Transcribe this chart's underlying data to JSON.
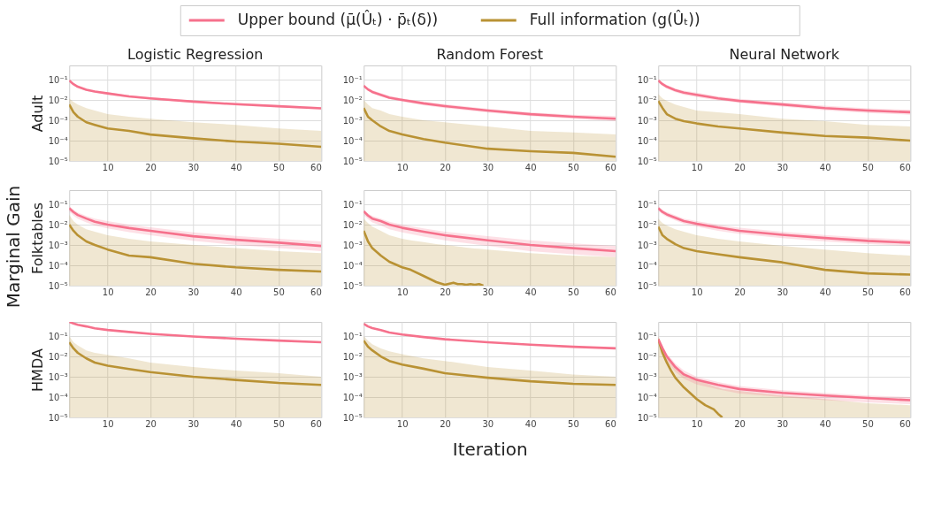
{
  "chart_data": [
    {
      "type": "line",
      "title": "Logistic Regression",
      "ylabel": "Adult",
      "legend": "top",
      "log": "y",
      "grid": true,
      "xlim": [
        1,
        60
      ],
      "ylim": [
        1e-05,
        0.5
      ],
      "xticks": [
        10,
        20,
        30,
        40,
        50,
        60
      ],
      "yticks": [
        {
          "value": 1e-05,
          "label": "10⁻⁵"
        },
        {
          "value": 0.0001,
          "label": "10⁻⁴"
        },
        {
          "value": 0.001,
          "label": "10⁻³"
        },
        {
          "value": 0.01,
          "label": "10⁻²"
        },
        {
          "value": 0.1,
          "label": "10⁻¹"
        }
      ],
      "x": [
        1,
        2,
        3,
        5,
        7,
        10,
        15,
        20,
        30,
        40,
        50,
        60
      ],
      "series": [
        {
          "name": "Full information (g(Ûₜ))",
          "color": "#b99234",
          "values": [
            0.006,
            0.0025,
            0.0015,
            0.0008,
            0.0006,
            0.0004,
            0.0003,
            0.0002,
            0.00013,
            9e-05,
            7e-05,
            5e-05
          ],
          "lower": [
            1e-05,
            1e-05,
            1e-05,
            1e-05,
            1e-05,
            1e-05,
            1e-05,
            1e-05,
            1e-05,
            1e-05,
            1e-05,
            1e-05
          ],
          "upper": [
            0.012,
            0.008,
            0.006,
            0.004,
            0.003,
            0.002,
            0.0015,
            0.0012,
            0.0008,
            0.0006,
            0.0004,
            0.0003
          ]
        },
        {
          "name": "Upper bound (μ̄(Ûₜ) · p̄ₜ(δ))",
          "color": "#f6718c",
          "values": [
            0.09,
            0.06,
            0.045,
            0.032,
            0.026,
            0.021,
            0.015,
            0.012,
            0.0083,
            0.0062,
            0.0049,
            0.0039
          ],
          "lower": [
            0.08,
            0.053,
            0.04,
            0.028,
            0.023,
            0.018,
            0.013,
            0.0105,
            0.0073,
            0.0054,
            0.0043,
            0.0034
          ],
          "upper": [
            0.1,
            0.068,
            0.051,
            0.036,
            0.029,
            0.024,
            0.017,
            0.0135,
            0.0094,
            0.007,
            0.0056,
            0.0045
          ]
        }
      ]
    },
    {
      "type": "line",
      "title": "Random Forest",
      "log": "y",
      "grid": true,
      "xlim": [
        1,
        60
      ],
      "ylim": [
        1e-05,
        0.5
      ],
      "xticks": [
        10,
        20,
        30,
        40,
        50,
        60
      ],
      "yticks": [
        {
          "value": 1e-05,
          "label": "10⁻⁵"
        },
        {
          "value": 0.0001,
          "label": "10⁻⁴"
        },
        {
          "value": 0.001,
          "label": "10⁻³"
        },
        {
          "value": 0.01,
          "label": "10⁻²"
        },
        {
          "value": 0.1,
          "label": "10⁻¹"
        }
      ],
      "x": [
        1,
        2,
        3,
        5,
        7,
        10,
        15,
        20,
        30,
        40,
        50,
        60
      ],
      "series": [
        {
          "color": "#b99234",
          "values": [
            0.004,
            0.0015,
            0.001,
            0.0005,
            0.0003,
            0.0002,
            0.00012,
            8e-05,
            4e-05,
            3e-05,
            2.5e-05,
            1.6e-05
          ],
          "lower": [
            1e-05,
            1e-05,
            1e-05,
            1e-05,
            1e-05,
            1e-05,
            1e-05,
            1e-05,
            1e-05,
            1e-05,
            1e-05,
            1e-05
          ],
          "upper": [
            0.01,
            0.006,
            0.004,
            0.003,
            0.002,
            0.0015,
            0.001,
            0.0008,
            0.0005,
            0.0003,
            0.00025,
            0.0002
          ]
        },
        {
          "color": "#f6718c",
          "values": [
            0.05,
            0.033,
            0.025,
            0.018,
            0.013,
            0.01,
            0.0068,
            0.005,
            0.003,
            0.002,
            0.0015,
            0.0012
          ],
          "lower": [
            0.042,
            0.028,
            0.021,
            0.015,
            0.011,
            0.0083,
            0.0055,
            0.004,
            0.0024,
            0.0016,
            0.0012,
            0.0009
          ],
          "upper": [
            0.058,
            0.039,
            0.03,
            0.022,
            0.016,
            0.012,
            0.0083,
            0.0062,
            0.0037,
            0.0025,
            0.0019,
            0.0016
          ]
        }
      ]
    },
    {
      "type": "line",
      "title": "Neural Network",
      "log": "y",
      "grid": true,
      "xlim": [
        1,
        60
      ],
      "ylim": [
        1e-05,
        0.5
      ],
      "xticks": [
        10,
        20,
        30,
        40,
        50,
        60
      ],
      "yticks": [
        {
          "value": 1e-05,
          "label": "10⁻⁵"
        },
        {
          "value": 0.0001,
          "label": "10⁻⁴"
        },
        {
          "value": 0.001,
          "label": "10⁻³"
        },
        {
          "value": 0.01,
          "label": "10⁻²"
        },
        {
          "value": 0.1,
          "label": "10⁻¹"
        }
      ],
      "x": [
        1,
        2,
        3,
        5,
        7,
        10,
        15,
        20,
        30,
        40,
        50,
        60
      ],
      "series": [
        {
          "color": "#b99234",
          "values": [
            0.009,
            0.004,
            0.002,
            0.0012,
            0.0009,
            0.0007,
            0.0005,
            0.0004,
            0.00025,
            0.00017,
            0.00014,
            0.0001
          ],
          "lower": [
            1e-05,
            1e-05,
            1e-05,
            1e-05,
            1e-05,
            1e-05,
            1e-05,
            1e-05,
            1e-05,
            1e-05,
            1e-05,
            1e-05
          ],
          "upper": [
            0.02,
            0.012,
            0.009,
            0.006,
            0.0045,
            0.003,
            0.0025,
            0.002,
            0.0012,
            0.0009,
            0.0006,
            0.0005
          ]
        },
        {
          "color": "#f6718c",
          "values": [
            0.09,
            0.06,
            0.045,
            0.03,
            0.023,
            0.018,
            0.012,
            0.009,
            0.006,
            0.004,
            0.003,
            0.0025
          ],
          "lower": [
            0.075,
            0.05,
            0.037,
            0.024,
            0.018,
            0.014,
            0.0095,
            0.0072,
            0.0047,
            0.0031,
            0.0023,
            0.0019
          ],
          "upper": [
            0.105,
            0.072,
            0.055,
            0.037,
            0.029,
            0.023,
            0.015,
            0.0115,
            0.0077,
            0.0052,
            0.0039,
            0.0033
          ]
        }
      ]
    },
    {
      "type": "line",
      "ylabel": "Folktables",
      "annotations": [
        "Marginal Gain"
      ],
      "log": "y",
      "grid": true,
      "xlim": [
        1,
        60
      ],
      "ylim": [
        1e-05,
        0.5
      ],
      "xticks": [
        10,
        20,
        30,
        40,
        50,
        60
      ],
      "yticks": [
        {
          "value": 1e-05,
          "label": "10⁻⁵"
        },
        {
          "value": 0.0001,
          "label": "10⁻⁴"
        },
        {
          "value": 0.001,
          "label": "10⁻³"
        },
        {
          "value": 0.01,
          "label": "10⁻²"
        },
        {
          "value": 0.1,
          "label": "10⁻¹"
        }
      ],
      "x": [
        1,
        2,
        3,
        5,
        7,
        10,
        15,
        20,
        30,
        40,
        50,
        60
      ],
      "series": [
        {
          "color": "#b99234",
          "values": [
            0.01,
            0.005,
            0.003,
            0.0015,
            0.001,
            0.0006,
            0.0003,
            0.00025,
            0.00012,
            8e-05,
            6e-05,
            5e-05
          ],
          "lower": [
            1e-05,
            1e-05,
            1e-05,
            1e-05,
            1e-05,
            1e-05,
            1e-05,
            1e-05,
            1e-05,
            1e-05,
            1e-05,
            1e-05
          ],
          "upper": [
            0.03,
            0.015,
            0.01,
            0.006,
            0.0045,
            0.003,
            0.002,
            0.0015,
            0.001,
            0.0007,
            0.0005,
            0.0004
          ]
        },
        {
          "color": "#f6718c",
          "values": [
            0.065,
            0.042,
            0.03,
            0.02,
            0.014,
            0.01,
            0.0068,
            0.005,
            0.0027,
            0.0018,
            0.0013,
            0.0009
          ],
          "lower": [
            0.045,
            0.028,
            0.02,
            0.013,
            0.009,
            0.0065,
            0.0043,
            0.003,
            0.0016,
            0.001,
            0.0007,
            0.0005
          ],
          "upper": [
            0.08,
            0.055,
            0.04,
            0.027,
            0.02,
            0.015,
            0.01,
            0.0075,
            0.0042,
            0.0028,
            0.002,
            0.0015
          ]
        }
      ]
    },
    {
      "type": "line",
      "log": "y",
      "grid": true,
      "xlim": [
        1,
        60
      ],
      "ylim": [
        1e-05,
        0.5
      ],
      "xticks": [
        10,
        20,
        30,
        40,
        50,
        60
      ],
      "yticks": [
        {
          "value": 1e-05,
          "label": "10⁻⁵"
        },
        {
          "value": 0.0001,
          "label": "10⁻⁴"
        },
        {
          "value": 0.001,
          "label": "10⁻³"
        },
        {
          "value": 0.01,
          "label": "10⁻²"
        },
        {
          "value": 0.1,
          "label": "10⁻¹"
        }
      ],
      "x": [
        1,
        2,
        3,
        5,
        7,
        10,
        15,
        20,
        30,
        40,
        50,
        60
      ],
      "series": [
        {
          "color": "#b99234",
          "x": [
            1,
            2,
            3,
            5,
            7,
            10,
            12,
            15,
            18,
            20,
            22,
            23,
            24,
            25,
            26,
            27,
            28,
            29,
            30,
            40,
            50,
            60
          ],
          "values": [
            0.005,
            0.0015,
            0.0007,
            0.0003,
            0.00015,
            8e-05,
            6e-05,
            3e-05,
            1.5e-05,
            1.1e-05,
            1.4e-05,
            1.2e-05,
            1.2e-05,
            1.1e-05,
            1.2e-05,
            1.1e-05,
            1.2e-05,
            1e-05,
            null,
            null,
            null,
            null
          ],
          "lower": [
            1e-05,
            1e-05,
            1e-05,
            1e-05,
            1e-05,
            1e-05,
            1e-05,
            1e-05,
            1e-05,
            1e-05,
            1e-05,
            1e-05,
            1e-05,
            1e-05,
            1e-05,
            1e-05,
            1e-05,
            1e-05,
            1e-05,
            1e-05,
            1e-05,
            1e-05
          ],
          "upper": [
            0.02,
            0.012,
            0.008,
            0.005,
            0.003,
            0.002,
            0.0017,
            0.0014,
            0.0011,
            0.001,
            0.0009,
            0.00085,
            0.0008,
            0.00075,
            0.0007,
            0.00068,
            0.00065,
            0.00062,
            0.0006,
            0.0004,
            0.0003,
            0.00025
          ]
        },
        {
          "color": "#f6718c",
          "values": [
            0.045,
            0.028,
            0.02,
            0.015,
            0.01,
            0.007,
            0.0045,
            0.003,
            0.0017,
            0.001,
            0.0007,
            0.0005
          ],
          "lower": [
            0.03,
            0.019,
            0.013,
            0.009,
            0.006,
            0.0042,
            0.0026,
            0.0017,
            0.0009,
            0.0005,
            0.00035,
            0.00025
          ],
          "upper": [
            0.055,
            0.036,
            0.027,
            0.02,
            0.014,
            0.01,
            0.0065,
            0.0045,
            0.0027,
            0.0017,
            0.0012,
            0.0009
          ]
        }
      ]
    },
    {
      "type": "line",
      "log": "y",
      "grid": true,
      "xlim": [
        1,
        60
      ],
      "ylim": [
        1e-05,
        0.5
      ],
      "xticks": [
        10,
        20,
        30,
        40,
        50,
        60
      ],
      "yticks": [
        {
          "value": 1e-05,
          "label": "10⁻⁵"
        },
        {
          "value": 0.0001,
          "label": "10⁻⁴"
        },
        {
          "value": 0.001,
          "label": "10⁻³"
        },
        {
          "value": 0.01,
          "label": "10⁻²"
        },
        {
          "value": 0.1,
          "label": "10⁻¹"
        }
      ],
      "x": [
        1,
        2,
        3,
        5,
        7,
        10,
        15,
        20,
        30,
        40,
        50,
        60
      ],
      "series": [
        {
          "color": "#b99234",
          "values": [
            0.008,
            0.003,
            0.002,
            0.0011,
            0.0007,
            0.0005,
            0.00035,
            0.00025,
            0.00014,
            6e-05,
            4e-05,
            3.5e-05
          ],
          "lower": [
            1e-05,
            1e-05,
            1e-05,
            1e-05,
            1e-05,
            1e-05,
            1e-05,
            1e-05,
            1e-05,
            1e-05,
            1e-05,
            1e-05
          ],
          "upper": [
            0.02,
            0.012,
            0.009,
            0.006,
            0.0045,
            0.003,
            0.002,
            0.0015,
            0.0009,
            0.0006,
            0.0004,
            0.0003
          ]
        },
        {
          "color": "#f6718c",
          "values": [
            0.065,
            0.042,
            0.032,
            0.022,
            0.015,
            0.011,
            0.0072,
            0.005,
            0.0032,
            0.0022,
            0.0016,
            0.0013
          ],
          "lower": [
            0.05,
            0.032,
            0.024,
            0.016,
            0.011,
            0.008,
            0.005,
            0.0035,
            0.0022,
            0.0015,
            0.0011,
            0.0009
          ],
          "upper": [
            0.08,
            0.054,
            0.042,
            0.029,
            0.02,
            0.015,
            0.01,
            0.007,
            0.0045,
            0.0031,
            0.0023,
            0.0018
          ]
        }
      ]
    },
    {
      "type": "line",
      "ylabel": "HMDA",
      "log": "y",
      "grid": true,
      "xlim": [
        1,
        60
      ],
      "ylim": [
        1e-05,
        0.5
      ],
      "xticks": [
        10,
        20,
        30,
        40,
        50,
        60
      ],
      "yticks": [
        {
          "value": 1e-05,
          "label": "10⁻⁵"
        },
        {
          "value": 0.0001,
          "label": "10⁻⁴"
        },
        {
          "value": 0.001,
          "label": "10⁻³"
        },
        {
          "value": 0.01,
          "label": "10⁻²"
        },
        {
          "value": 0.1,
          "label": "10⁻¹"
        }
      ],
      "x": [
        1,
        2,
        3,
        5,
        7,
        10,
        15,
        20,
        30,
        40,
        50,
        60
      ],
      "series": [
        {
          "color": "#b99234",
          "values": [
            0.05,
            0.025,
            0.015,
            0.008,
            0.005,
            0.0035,
            0.0024,
            0.0017,
            0.001,
            0.0007,
            0.0005,
            0.0004
          ],
          "lower": [
            1e-05,
            1e-05,
            1e-05,
            1e-05,
            1e-05,
            1e-05,
            1e-05,
            1e-05,
            1e-05,
            1e-05,
            1e-05,
            1e-05
          ],
          "upper": [
            0.1,
            0.05,
            0.035,
            0.02,
            0.015,
            0.012,
            0.008,
            0.005,
            0.003,
            0.002,
            0.0015,
            0.001
          ]
        },
        {
          "color": "#f6718c",
          "values": [
            0.5,
            0.42,
            0.36,
            0.3,
            0.24,
            0.2,
            0.16,
            0.13,
            0.095,
            0.075,
            0.06,
            0.05
          ]
        }
      ]
    },
    {
      "type": "line",
      "xlabel": "Iteration",
      "log": "y",
      "grid": true,
      "xlim": [
        1,
        60
      ],
      "ylim": [
        1e-05,
        0.5
      ],
      "xticks": [
        10,
        20,
        30,
        40,
        50,
        60
      ],
      "yticks": [
        {
          "value": 1e-05,
          "label": "10⁻⁵"
        },
        {
          "value": 0.0001,
          "label": "10⁻⁴"
        },
        {
          "value": 0.001,
          "label": "10⁻³"
        },
        {
          "value": 0.01,
          "label": "10⁻²"
        },
        {
          "value": 0.1,
          "label": "10⁻¹"
        }
      ],
      "x": [
        1,
        2,
        3,
        5,
        7,
        10,
        15,
        20,
        30,
        40,
        50,
        60
      ],
      "series": [
        {
          "color": "#b99234",
          "values": [
            0.06,
            0.03,
            0.02,
            0.01,
            0.006,
            0.004,
            0.0025,
            0.0015,
            0.0009,
            0.0006,
            0.00045,
            0.0004
          ],
          "lower": [
            1e-05,
            1e-05,
            1e-05,
            1e-05,
            1e-05,
            1e-05,
            1e-05,
            1e-05,
            1e-05,
            1e-05,
            1e-05,
            1e-05
          ],
          "upper": [
            0.1,
            0.06,
            0.04,
            0.025,
            0.018,
            0.013,
            0.008,
            0.006,
            0.003,
            0.002,
            0.0013,
            0.001
          ]
        },
        {
          "color": "#f6718c",
          "values": [
            0.4,
            0.3,
            0.25,
            0.2,
            0.15,
            0.12,
            0.09,
            0.07,
            0.05,
            0.038,
            0.03,
            0.025
          ]
        }
      ]
    },
    {
      "type": "line",
      "log": "y",
      "grid": true,
      "xlim": [
        1,
        60
      ],
      "ylim": [
        1e-05,
        0.5
      ],
      "xticks": [
        10,
        20,
        30,
        40,
        50,
        60
      ],
      "yticks": [
        {
          "value": 1e-05,
          "label": "10⁻⁵"
        },
        {
          "value": 0.0001,
          "label": "10⁻⁴"
        },
        {
          "value": 0.001,
          "label": "10⁻³"
        },
        {
          "value": 0.01,
          "label": "10⁻²"
        },
        {
          "value": 0.1,
          "label": "10⁻¹"
        }
      ],
      "x": [
        1,
        2,
        3,
        5,
        7,
        10,
        15,
        20,
        30,
        40,
        50,
        60
      ],
      "series": [
        {
          "color": "#b99234",
          "x": [
            1,
            2,
            3,
            4,
            5,
            7,
            10,
            12,
            14,
            15,
            16,
            20,
            30,
            40,
            50,
            60
          ],
          "values": [
            0.07,
            0.015,
            0.005,
            0.002,
            0.0009,
            0.0003,
            8e-05,
            4e-05,
            2.5e-05,
            1.5e-05,
            1e-05,
            null,
            null,
            null,
            null,
            null
          ],
          "lower": [
            1e-05,
            1e-05,
            1e-05,
            1e-05,
            1e-05,
            1e-05,
            1e-05,
            1e-05,
            1e-05,
            1e-05,
            1e-05,
            1e-05,
            1e-05,
            1e-05,
            1e-05,
            1e-05
          ],
          "upper": [
            0.1,
            0.03,
            0.01,
            0.005,
            0.003,
            0.0015,
            0.0008,
            0.0005,
            0.00035,
            0.0003,
            0.00025,
            0.0002,
            0.00012,
            8e-05,
            5e-05,
            4e-05
          ]
        },
        {
          "color": "#f6718c",
          "values": [
            0.07,
            0.025,
            0.01,
            0.003,
            0.0013,
            0.0007,
            0.0004,
            0.00025,
            0.00016,
            0.00012,
            9e-05,
            7e-05
          ],
          "lower": [
            0.05,
            0.017,
            0.006,
            0.0018,
            0.0008,
            0.00042,
            0.00024,
            0.00015,
            0.0001,
            7e-05,
            5.5e-05,
            4.5e-05
          ],
          "upper": [
            0.09,
            0.035,
            0.014,
            0.0045,
            0.002,
            0.001,
            0.00055,
            0.00035,
            0.00022,
            0.00016,
            0.00012,
            0.0001
          ]
        }
      ]
    }
  ]
}
